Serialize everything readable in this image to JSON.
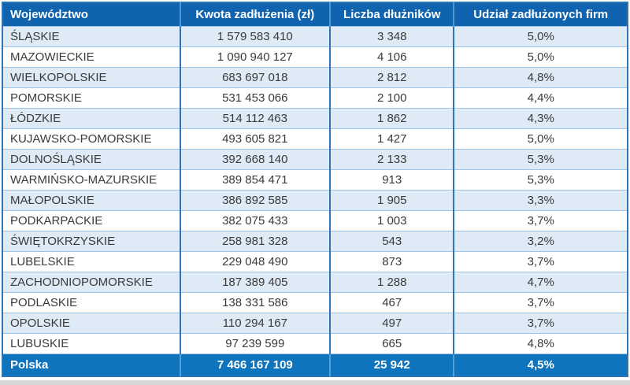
{
  "colors": {
    "header_bg": "#1063ae",
    "header_text": "#ffffff",
    "footer_bg": "#0e74be",
    "footer_text": "#ffffff",
    "row_alt_bg": "#deeaf6",
    "row_bg": "#ffffff",
    "column_border": "#2e75b6",
    "row_border": "#9dc3e6",
    "body_text": "#3a3a3a",
    "bottom_strip": "#d6d6d6"
  },
  "table": {
    "columns": [
      {
        "label": "Województwo"
      },
      {
        "label": "Kwota zadłużenia (zł)"
      },
      {
        "label": "Liczba dłużników"
      },
      {
        "label": "Udział zadłużonych firm"
      }
    ],
    "rows": [
      {
        "wojewodztwo": "ŚLĄSKIE",
        "kwota": "1 579 583 410",
        "liczba": "3 348",
        "udzial": "5,0%"
      },
      {
        "wojewodztwo": "MAZOWIECKIE",
        "kwota": "1 090 940 127",
        "liczba": "4 106",
        "udzial": "5,0%"
      },
      {
        "wojewodztwo": "WIELKOPOLSKIE",
        "kwota": "683 697 018",
        "liczba": "2 812",
        "udzial": "4,8%"
      },
      {
        "wojewodztwo": "POMORSKIE",
        "kwota": "531 453 066",
        "liczba": "2 100",
        "udzial": "4,4%"
      },
      {
        "wojewodztwo": "ŁÓDZKIE",
        "kwota": "514 112 463",
        "liczba": "1 862",
        "udzial": "4,3%"
      },
      {
        "wojewodztwo": "KUJAWSKO-POMORSKIE",
        "kwota": "493 605 821",
        "liczba": "1 427",
        "udzial": "5,0%"
      },
      {
        "wojewodztwo": "DOLNOŚLĄSKIE",
        "kwota": "392 668 140",
        "liczba": "2 133",
        "udzial": "5,3%"
      },
      {
        "wojewodztwo": "WARMIŃSKO-MAZURSKIE",
        "kwota": "389 854 471",
        "liczba": "913",
        "udzial": "5,3%"
      },
      {
        "wojewodztwo": "MAŁOPOLSKIE",
        "kwota": "386 892 585",
        "liczba": "1 905",
        "udzial": "3,3%"
      },
      {
        "wojewodztwo": "PODKARPACKIE",
        "kwota": "382 075 433",
        "liczba": "1 003",
        "udzial": "3,7%"
      },
      {
        "wojewodztwo": "ŚWIĘTOKRZYSKIE",
        "kwota": "258 981 328",
        "liczba": "543",
        "udzial": "3,2%"
      },
      {
        "wojewodztwo": "LUBELSKIE",
        "kwota": "229 048 490",
        "liczba": "873",
        "udzial": "3,7%"
      },
      {
        "wojewodztwo": "ZACHODNIOPOMORSKIE",
        "kwota": "187 389 405",
        "liczba": "1 288",
        "udzial": "4,7%"
      },
      {
        "wojewodztwo": "PODLASKIE",
        "kwota": "138 331 586",
        "liczba": "467",
        "udzial": "3,7%"
      },
      {
        "wojewodztwo": "OPOLSKIE",
        "kwota": "110 294 167",
        "liczba": "497",
        "udzial": "3,7%"
      },
      {
        "wojewodztwo": "LUBUSKIE",
        "kwota": "97 239 599",
        "liczba": "665",
        "udzial": "4,8%"
      }
    ],
    "footer": {
      "wojewodztwo": "Polska",
      "kwota": "7 466 167 109",
      "liczba": "25 942",
      "udzial": "4,5%"
    }
  },
  "chart_data": {
    "type": "table",
    "title": "",
    "columns": [
      "Województwo",
      "Kwota zadłużenia (zł)",
      "Liczba dłużników",
      "Udział zadłużonych firm"
    ],
    "rows": [
      [
        "ŚLĄSKIE",
        1579583410,
        3348,
        "5,0%"
      ],
      [
        "MAZOWIECKIE",
        1090940127,
        4106,
        "5,0%"
      ],
      [
        "WIELKOPOLSKIE",
        683697018,
        2812,
        "4,8%"
      ],
      [
        "POMORSKIE",
        531453066,
        2100,
        "4,4%"
      ],
      [
        "ŁÓDZKIE",
        514112463,
        1862,
        "4,3%"
      ],
      [
        "KUJAWSKO-POMORSKIE",
        493605821,
        1427,
        "5,0%"
      ],
      [
        "DOLNOŚLĄSKIE",
        392668140,
        2133,
        "5,3%"
      ],
      [
        "WARMIŃSKO-MAZURSKIE",
        389854471,
        913,
        "5,3%"
      ],
      [
        "MAŁOPOLSKIE",
        386892585,
        1905,
        "3,3%"
      ],
      [
        "PODKARPACKIE",
        382075433,
        1003,
        "3,7%"
      ],
      [
        "ŚWIĘTOKRZYSKIE",
        258981328,
        543,
        "3,2%"
      ],
      [
        "LUBELSKIE",
        229048490,
        873,
        "3,7%"
      ],
      [
        "ZACHODNIOPOMORSKIE",
        187389405,
        1288,
        "4,7%"
      ],
      [
        "PODLASKIE",
        138331586,
        467,
        "3,7%"
      ],
      [
        "OPOLSKIE",
        110294167,
        497,
        "3,7%"
      ],
      [
        "LUBUSKIE",
        97239599,
        665,
        "4,8%"
      ]
    ],
    "total_row": [
      "Polska",
      7466167109,
      25942,
      "4,5%"
    ],
    "notes": "Alternating light-blue/white rows; dark blue header; bright blue total row"
  }
}
